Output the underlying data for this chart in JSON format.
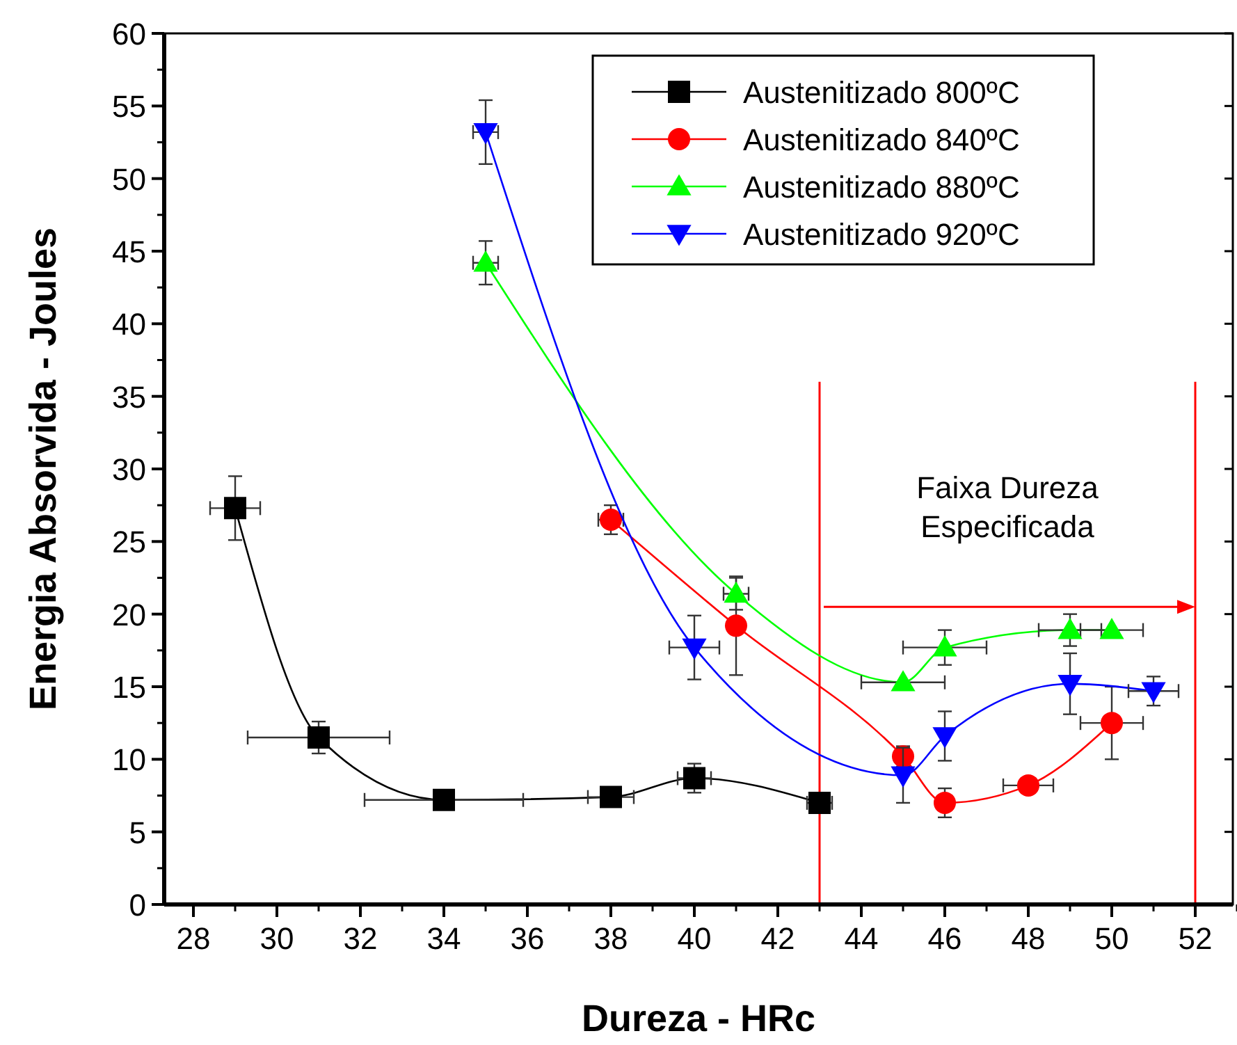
{
  "chart_data": {
    "type": "line",
    "xlabel": "Dureza - HRc",
    "ylabel": "Energia Absorvida - Joules",
    "xlim": [
      27.3,
      52.9
    ],
    "xticks": [
      28,
      30,
      32,
      34,
      36,
      38,
      40,
      42,
      44,
      46,
      48,
      50,
      52
    ],
    "ylim": [
      0,
      60
    ],
    "yticks": [
      0,
      5,
      10,
      15,
      20,
      25,
      30,
      35,
      40,
      45,
      50,
      55,
      60
    ],
    "legend": "top right",
    "grid": false,
    "series": [
      {
        "name": "Austenitizado 800ºC",
        "color": "#000000",
        "marker": "square",
        "line_style": "solid",
        "x": [
          29,
          31,
          34,
          38,
          40,
          43
        ],
        "values": [
          27.3,
          11.5,
          7.2,
          7.4,
          8.7,
          7.0
        ],
        "errors": [
          2.2,
          1.1,
          null,
          null,
          1.0,
          null
        ],
        "xerrors": [
          0.6,
          1.7,
          1.9,
          0.55,
          0.4,
          0.3
        ]
      },
      {
        "name": "Austenitizado 840ºC",
        "color": "#ff0000",
        "marker": "circle",
        "line_style": "solid",
        "x": [
          38,
          41,
          45,
          46,
          48,
          50
        ],
        "values": [
          26.5,
          19.2,
          10.2,
          7.0,
          8.2,
          12.5
        ],
        "errors": [
          1.0,
          3.4,
          0.7,
          1.0,
          null,
          2.5
        ],
        "xerrors": [
          0.3,
          null,
          null,
          null,
          0.6,
          0.75
        ]
      },
      {
        "name": "Austenitizado 880ºC",
        "color": "#00ff00",
        "marker": "triangle",
        "line_style": "solid",
        "x": [
          35,
          41,
          45,
          46,
          49,
          50
        ],
        "values": [
          44.2,
          21.4,
          15.3,
          17.7,
          18.9,
          18.9
        ],
        "errors": [
          1.5,
          1.1,
          null,
          1.2,
          1.1,
          null
        ],
        "xerrors": [
          0.3,
          0.3,
          1.0,
          1.0,
          0.75,
          0.75
        ]
      },
      {
        "name": "Austenitizado 920ºC",
        "color": "#0000ff",
        "marker": "triangle-down",
        "line_style": "solid",
        "x": [
          35,
          40,
          45,
          46,
          49,
          51
        ],
        "values": [
          53.2,
          17.7,
          8.9,
          11.6,
          15.2,
          14.7
        ],
        "errors": [
          2.2,
          2.2,
          1.9,
          1.7,
          2.1,
          1.0
        ],
        "xerrors": [
          0.3,
          0.6,
          null,
          null,
          null,
          0.6
        ]
      }
    ],
    "ref_lines": [
      {
        "axis": "x",
        "value": 43,
        "color": "#ff0000"
      },
      {
        "axis": "x",
        "value": 52,
        "color": "#ff0000"
      }
    ],
    "annotations": [
      "Faixa Dureza\nEspecificada"
    ]
  }
}
